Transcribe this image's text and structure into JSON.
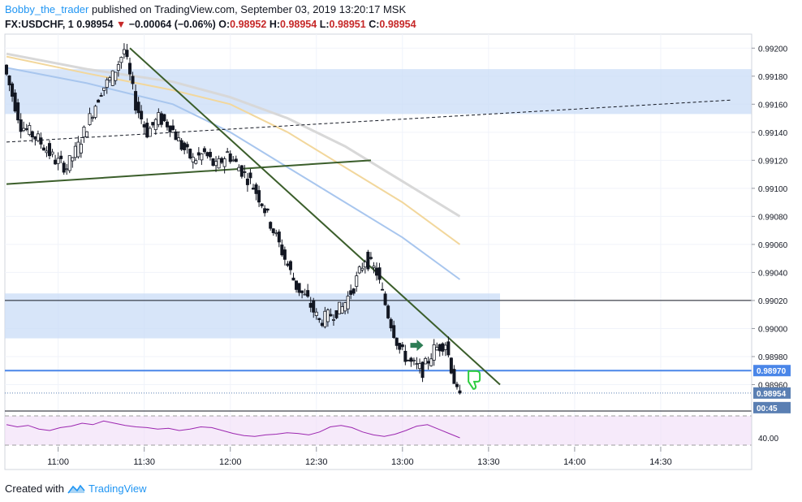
{
  "header": {
    "user": "Bobby_the_trader",
    "published": "published on TradingView.com, September 03, 2019 13:20:17 MSK",
    "symbol": "FX:USDCHF, 1",
    "last": "0.98954",
    "change": "−0.00064 (−0.06%)",
    "o_label": "O:",
    "o": "0.98952",
    "h_label": "H:",
    "h": "0.98954",
    "l_label": "L:",
    "l": "0.98951",
    "c_label": "C:",
    "c": "0.98954"
  },
  "footer": {
    "created_with": "Created with",
    "brand": "TradingView"
  },
  "colors": {
    "up": "#5b6b7a",
    "down": "#131722",
    "zone": "#c9dcf7",
    "sma_blue": "#a8c6ee",
    "sma_yellow": "#f2d79c",
    "sma_gray": "#d8d8d8",
    "trend": "#3b5e2b",
    "level": "#4a86e8",
    "rsi": "#9c27b0",
    "rsi_band": "#f0dcf7"
  },
  "chart_data": {
    "type": "candlestick",
    "symbol": "FX:USDCHF",
    "interval": "1",
    "y_ticks": [
      "0.99200",
      "0.99180",
      "0.99160",
      "0.99140",
      "0.99120",
      "0.99100",
      "0.99080",
      "0.99060",
      "0.99040",
      "0.99020",
      "0.99000",
      "0.98980",
      "0.98960"
    ],
    "x_ticks": [
      "11:00",
      "11:30",
      "12:00",
      "12:30",
      "13:00",
      "13:30",
      "14:00",
      "14:30"
    ],
    "price_badges": [
      {
        "text": "0.98970",
        "value": 0.9897
      },
      {
        "text": "0.98954",
        "value": 0.98954
      },
      {
        "text": "00:45",
        "value": 0.98947
      }
    ],
    "price_path": [
      [
        "10:42",
        0.99188
      ],
      [
        "10:48",
        0.99145
      ],
      [
        "10:54",
        0.99135
      ],
      [
        "11:00",
        0.9912
      ],
      [
        "11:04",
        0.99115
      ],
      [
        "11:08",
        0.9913
      ],
      [
        "11:12",
        0.9915
      ],
      [
        "11:16",
        0.9917
      ],
      [
        "11:20",
        0.9918
      ],
      [
        "11:24",
        0.99199
      ],
      [
        "11:28",
        0.9916
      ],
      [
        "11:32",
        0.9914
      ],
      [
        "11:36",
        0.9915
      ],
      [
        "11:40",
        0.99145
      ],
      [
        "11:44",
        0.9913
      ],
      [
        "11:48",
        0.9912
      ],
      [
        "11:52",
        0.99125
      ],
      [
        "11:56",
        0.99115
      ],
      [
        "12:00",
        0.99125
      ],
      [
        "12:04",
        0.99115
      ],
      [
        "12:08",
        0.99105
      ],
      [
        "12:12",
        0.9909
      ],
      [
        "12:16",
        0.9907
      ],
      [
        "12:20",
        0.9905
      ],
      [
        "12:24",
        0.9903
      ],
      [
        "12:28",
        0.9902
      ],
      [
        "12:32",
        0.99005
      ],
      [
        "12:36",
        0.9901
      ],
      [
        "12:40",
        0.99015
      ],
      [
        "12:44",
        0.9903
      ],
      [
        "12:48",
        0.9905
      ],
      [
        "12:52",
        0.9904
      ],
      [
        "12:56",
        0.9901
      ],
      [
        "13:00",
        0.98985
      ],
      [
        "13:04",
        0.98975
      ],
      [
        "13:08",
        0.9897
      ],
      [
        "13:12",
        0.98985
      ],
      [
        "13:16",
        0.9899
      ],
      [
        "13:20",
        0.98954
      ]
    ],
    "sma_fast": [
      [
        "10:42",
        0.99186
      ],
      [
        "11:10",
        0.99175
      ],
      [
        "11:40",
        0.9916
      ],
      [
        "12:00",
        0.9914
      ],
      [
        "12:20",
        0.99115
      ],
      [
        "12:40",
        0.9909
      ],
      [
        "13:00",
        0.99065
      ],
      [
        "13:20",
        0.99035
      ]
    ],
    "sma_mid": [
      [
        "10:42",
        0.99194
      ],
      [
        "11:10",
        0.99182
      ],
      [
        "11:40",
        0.9917
      ],
      [
        "12:00",
        0.9916
      ],
      [
        "12:20",
        0.9914
      ],
      [
        "12:40",
        0.99115
      ],
      [
        "13:00",
        0.9909
      ],
      [
        "13:20",
        0.9906
      ]
    ],
    "sma_slow": [
      [
        "10:42",
        0.99196
      ],
      [
        "11:10",
        0.99185
      ],
      [
        "11:40",
        0.99176
      ],
      [
        "12:00",
        0.99165
      ],
      [
        "12:20",
        0.9915
      ],
      [
        "12:40",
        0.9913
      ],
      [
        "13:00",
        0.99105
      ],
      [
        "13:20",
        0.9908
      ]
    ],
    "zones": [
      {
        "top": 0.99185,
        "bottom": 0.99153
      },
      {
        "top": 0.99025,
        "bottom": 0.98993
      }
    ],
    "lines": [
      {
        "kind": "trend_down",
        "from": [
          "11:25",
          0.992
        ],
        "to": [
          "13:34",
          0.9896
        ]
      },
      {
        "kind": "trend_up",
        "from": [
          "10:42",
          0.99103
        ],
        "to": [
          "12:49",
          0.9912
        ]
      },
      {
        "kind": "dashed",
        "from": [
          "10:42",
          0.99133
        ],
        "to": [
          "14:55",
          0.99163
        ]
      },
      {
        "kind": "horizontal_black",
        "value": 0.9902
      },
      {
        "kind": "horizontal_blue",
        "value": 0.9897
      },
      {
        "kind": "horizontal_dotted",
        "value": 0.98954
      }
    ],
    "rsi": {
      "level_label": "40.00",
      "values": [
        58,
        55,
        57,
        52,
        50,
        54,
        56,
        60,
        58,
        63,
        60,
        57,
        55,
        54,
        52,
        53,
        50,
        52,
        55,
        54,
        50,
        46,
        43,
        42,
        44,
        45,
        47,
        46,
        44,
        48,
        55,
        57,
        54,
        48,
        44,
        42,
        45,
        50,
        56,
        58,
        52,
        46,
        40
      ]
    }
  }
}
